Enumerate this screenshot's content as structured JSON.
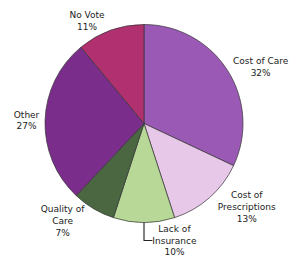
{
  "chart_data": {
    "type": "pie",
    "categories": [
      "Cost of Care",
      "Cost of\nPrescriptions",
      "Lack of\nInsurance",
      "Quality of\nCare",
      "Other",
      "No Vote"
    ],
    "values": [
      32,
      13,
      10,
      7,
      27,
      11
    ],
    "value_labels": [
      "32%",
      "13%",
      "10%",
      "7%",
      "27%",
      "11%"
    ],
    "colors": [
      "#9B59B6",
      "#E8C8E8",
      "#B8D898",
      "#4A6741",
      "#7B2D8B",
      "#B03070"
    ],
    "data_labels": true,
    "legend": false
  }
}
